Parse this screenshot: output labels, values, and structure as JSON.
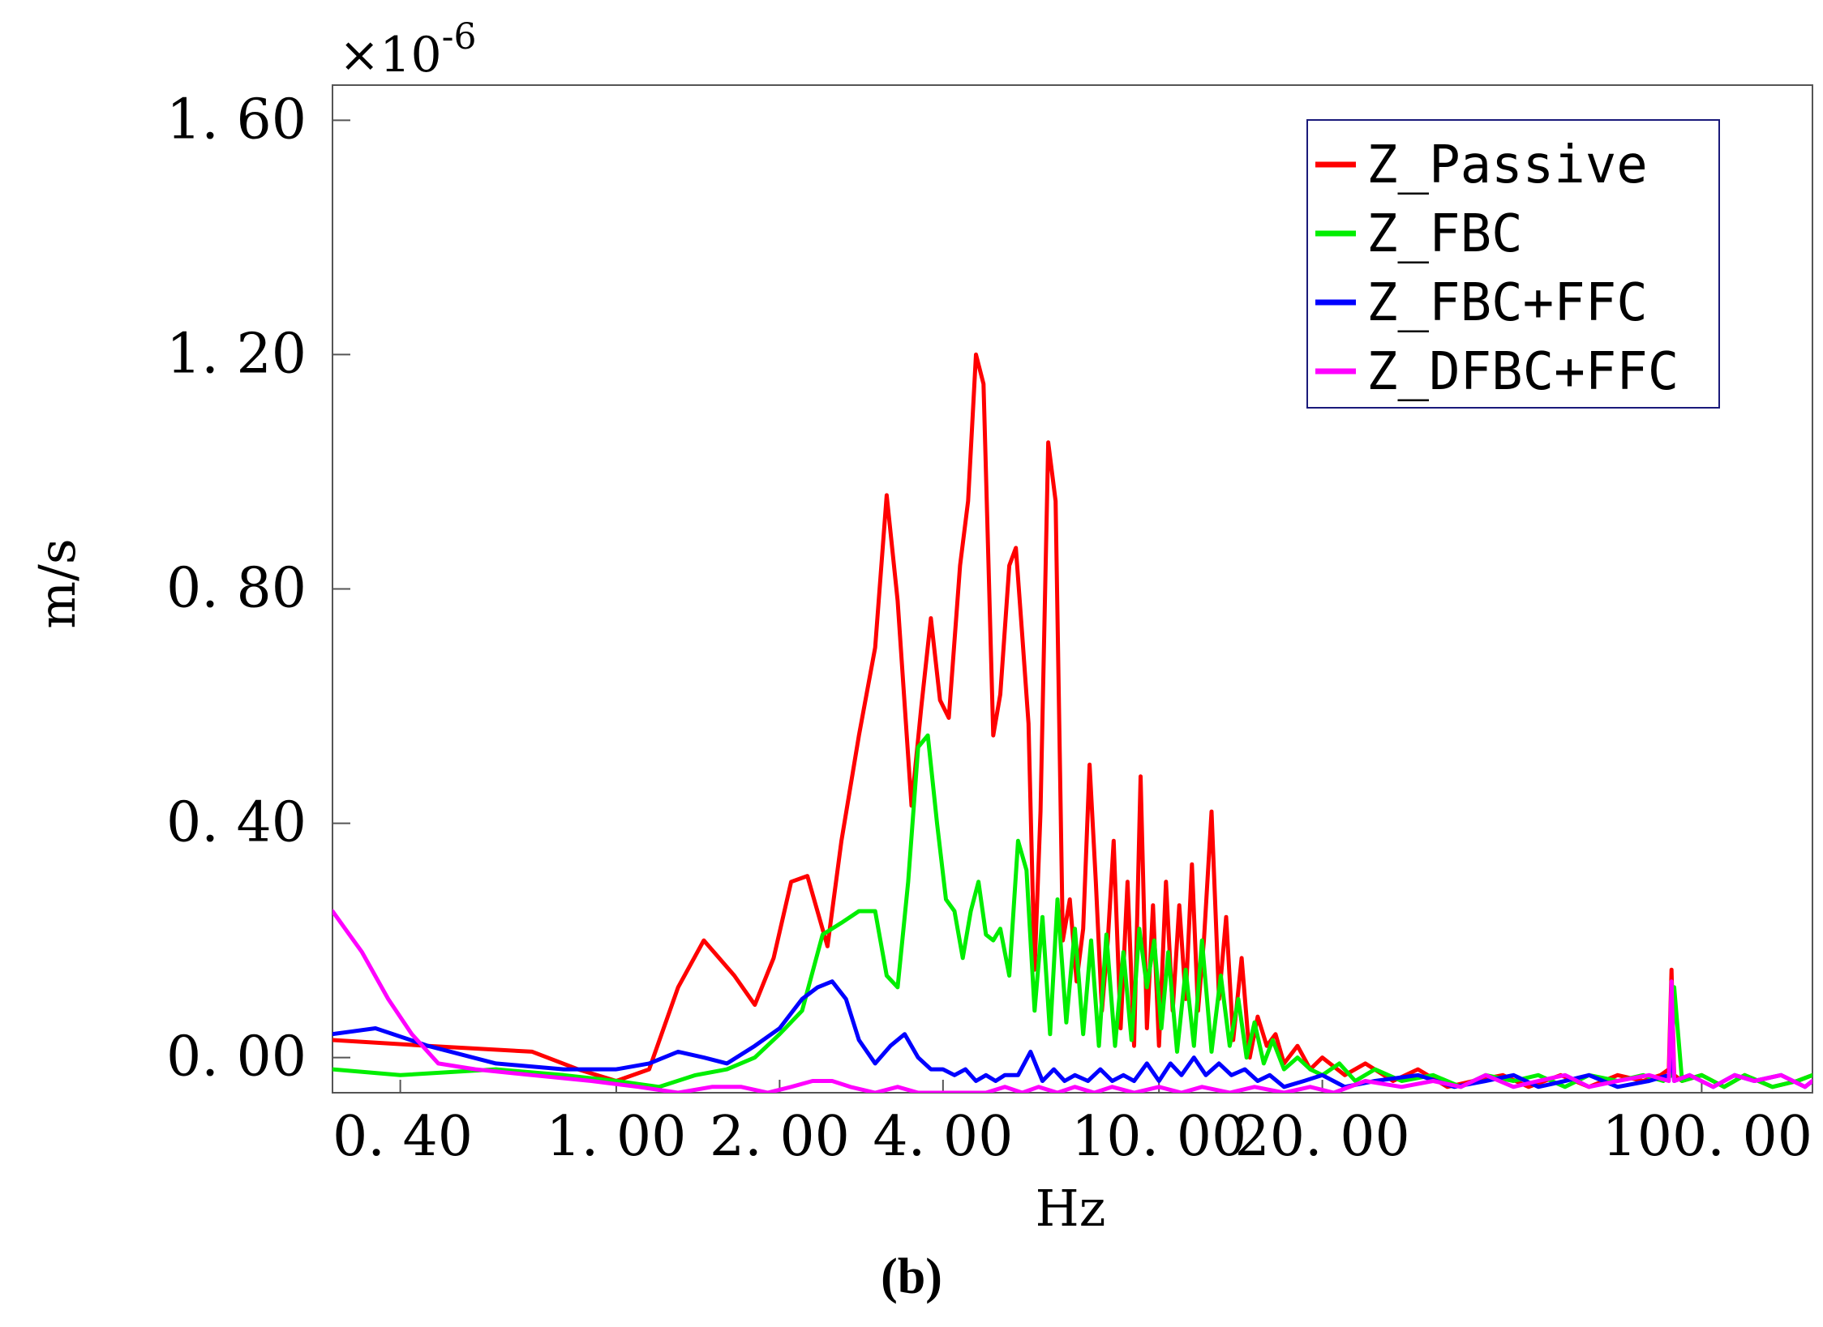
{
  "panel_label": "(b)",
  "chart_data": {
    "type": "line",
    "x_scale": "log",
    "xlabel": "Hz",
    "ylabel": "m/s",
    "y_multiplier_label": "×10",
    "y_multiplier_exponent": "-6",
    "xlim": [
      0.3,
      160
    ],
    "ylim": [
      -0.06,
      1.66
    ],
    "y_ticks": [
      {
        "value": 0.0,
        "label": "0. 00"
      },
      {
        "value": 0.4,
        "label": "0. 40"
      },
      {
        "value": 0.8,
        "label": "0. 80"
      },
      {
        "value": 1.2,
        "label": "1. 20"
      },
      {
        "value": 1.6,
        "label": "1. 60"
      }
    ],
    "x_ticks": [
      {
        "value": 0.4,
        "label": "0. 40"
      },
      {
        "value": 1.0,
        "label": "1. 00"
      },
      {
        "value": 2.0,
        "label": "2. 00"
      },
      {
        "value": 4.0,
        "label": "4. 00"
      },
      {
        "value": 10.0,
        "label": "10. 00"
      },
      {
        "value": 20.0,
        "label": "20. 00"
      },
      {
        "value": 100.0,
        "label": "100. 00"
      }
    ],
    "legend_position": "top-right",
    "series": [
      {
        "name": "Z_Passive",
        "color": "#ff0000",
        "x": [
          0.3,
          0.45,
          0.7,
          0.85,
          1.0,
          1.15,
          1.3,
          1.45,
          1.65,
          1.8,
          1.95,
          2.1,
          2.25,
          2.45,
          2.6,
          2.8,
          3.0,
          3.15,
          3.3,
          3.5,
          3.65,
          3.8,
          3.95,
          4.1,
          4.3,
          4.45,
          4.6,
          4.75,
          4.95,
          5.1,
          5.3,
          5.45,
          5.6,
          5.75,
          5.9,
          6.05,
          6.25,
          6.45,
          6.65,
          6.85,
          7.05,
          7.25,
          7.45,
          7.65,
          7.85,
          8.05,
          8.25,
          8.5,
          8.75,
          9.0,
          9.25,
          9.5,
          9.75,
          10.0,
          10.3,
          10.6,
          10.9,
          11.2,
          11.5,
          11.8,
          12.1,
          12.5,
          12.9,
          13.3,
          13.7,
          14.2,
          14.7,
          15.2,
          15.8,
          16.4,
          17.0,
          18.0,
          19.0,
          20.0,
          22.0,
          24.0,
          27.0,
          30.0,
          34.0,
          38.0,
          43.0,
          48.0,
          55.0,
          62.0,
          70.0,
          78.0,
          84.0,
          87.0,
          88.0,
          89.0,
          92.0,
          100.0,
          110.0,
          120.0,
          135.0,
          150.0,
          160.0
        ],
        "y": [
          0.03,
          0.02,
          0.01,
          -0.02,
          -0.04,
          -0.02,
          0.12,
          0.2,
          0.14,
          0.09,
          0.17,
          0.3,
          0.31,
          0.19,
          0.37,
          0.55,
          0.7,
          0.96,
          0.78,
          0.43,
          0.6,
          0.75,
          0.61,
          0.58,
          0.84,
          0.95,
          1.2,
          1.15,
          0.55,
          0.62,
          0.84,
          0.87,
          0.72,
          0.57,
          0.15,
          0.42,
          1.05,
          0.95,
          0.2,
          0.27,
          0.13,
          0.22,
          0.5,
          0.3,
          0.08,
          0.2,
          0.37,
          0.05,
          0.3,
          0.02,
          0.48,
          0.05,
          0.26,
          0.02,
          0.3,
          0.08,
          0.26,
          0.1,
          0.33,
          0.08,
          0.2,
          0.42,
          0.1,
          0.24,
          0.03,
          0.17,
          0.0,
          0.07,
          0.02,
          0.04,
          -0.01,
          0.02,
          -0.02,
          0.0,
          -0.03,
          -0.01,
          -0.04,
          -0.02,
          -0.05,
          -0.04,
          -0.03,
          -0.05,
          -0.03,
          -0.05,
          -0.03,
          -0.04,
          -0.03,
          -0.02,
          0.15,
          -0.03,
          -0.04,
          -0.03,
          -0.05,
          -0.03,
          -0.05,
          -0.04,
          -0.03
        ]
      },
      {
        "name": "Z_FBC",
        "color": "#00ee00",
        "x": [
          0.3,
          0.4,
          0.6,
          0.8,
          1.0,
          1.2,
          1.4,
          1.6,
          1.8,
          2.0,
          2.2,
          2.4,
          2.6,
          2.8,
          3.0,
          3.15,
          3.3,
          3.45,
          3.6,
          3.75,
          3.9,
          4.05,
          4.2,
          4.35,
          4.5,
          4.65,
          4.8,
          4.95,
          5.1,
          5.3,
          5.5,
          5.7,
          5.9,
          6.1,
          6.3,
          6.5,
          6.75,
          7.0,
          7.25,
          7.5,
          7.75,
          8.0,
          8.3,
          8.6,
          8.9,
          9.2,
          9.5,
          9.8,
          10.1,
          10.4,
          10.8,
          11.2,
          11.6,
          12.0,
          12.5,
          13.0,
          13.5,
          14.0,
          14.5,
          15.0,
          15.6,
          16.2,
          17.0,
          18.0,
          19.0,
          20.0,
          21.5,
          23.0,
          25.0,
          28.0,
          32.0,
          36.0,
          40.0,
          45.0,
          50.0,
          56.0,
          62.0,
          70.0,
          78.0,
          85.0,
          88.0,
          89.0,
          92.0,
          100.0,
          110.0,
          120.0,
          135.0,
          150.0,
          160.0
        ],
        "y": [
          -0.02,
          -0.03,
          -0.02,
          -0.03,
          -0.04,
          -0.05,
          -0.03,
          -0.02,
          0.0,
          0.04,
          0.08,
          0.21,
          0.23,
          0.25,
          0.25,
          0.14,
          0.12,
          0.3,
          0.53,
          0.55,
          0.4,
          0.27,
          0.25,
          0.17,
          0.25,
          0.3,
          0.21,
          0.2,
          0.22,
          0.14,
          0.37,
          0.32,
          0.08,
          0.24,
          0.04,
          0.27,
          0.06,
          0.22,
          0.04,
          0.2,
          0.02,
          0.21,
          0.02,
          0.18,
          0.03,
          0.22,
          0.12,
          0.2,
          0.05,
          0.18,
          0.01,
          0.15,
          0.02,
          0.2,
          0.01,
          0.14,
          0.02,
          0.1,
          0.0,
          0.06,
          -0.01,
          0.03,
          -0.02,
          0.0,
          -0.02,
          -0.03,
          -0.01,
          -0.04,
          -0.02,
          -0.04,
          -0.03,
          -0.05,
          -0.03,
          -0.04,
          -0.03,
          -0.05,
          -0.03,
          -0.04,
          -0.03,
          -0.04,
          -0.03,
          0.12,
          -0.04,
          -0.03,
          -0.05,
          -0.03,
          -0.05,
          -0.04,
          -0.03
        ]
      },
      {
        "name": "Z_FBC+FFC",
        "color": "#0000ff",
        "x": [
          0.3,
          0.36,
          0.45,
          0.6,
          0.8,
          1.0,
          1.15,
          1.3,
          1.45,
          1.6,
          1.8,
          2.0,
          2.2,
          2.35,
          2.5,
          2.65,
          2.8,
          3.0,
          3.2,
          3.4,
          3.6,
          3.8,
          4.0,
          4.2,
          4.4,
          4.6,
          4.8,
          5.0,
          5.2,
          5.5,
          5.8,
          6.1,
          6.4,
          6.7,
          7.0,
          7.4,
          7.8,
          8.2,
          8.6,
          9.0,
          9.5,
          10.0,
          10.5,
          11.0,
          11.6,
          12.2,
          12.9,
          13.6,
          14.4,
          15.2,
          16.0,
          17.0,
          18.5,
          20.0,
          22.0,
          25.0,
          30.0,
          35.0,
          40.0,
          45.0,
          50.0,
          56.0,
          62.0,
          70.0,
          80.0,
          87.0,
          88.0,
          89.0,
          95.0,
          105.0,
          115.0,
          125.0,
          140.0,
          155.0,
          160.0
        ],
        "y": [
          0.04,
          0.05,
          0.02,
          -0.01,
          -0.02,
          -0.02,
          -0.01,
          0.01,
          0.0,
          -0.01,
          0.02,
          0.05,
          0.1,
          0.12,
          0.13,
          0.1,
          0.03,
          -0.01,
          0.02,
          0.04,
          0.0,
          -0.02,
          -0.02,
          -0.03,
          -0.02,
          -0.04,
          -0.03,
          -0.04,
          -0.03,
          -0.03,
          0.01,
          -0.04,
          -0.02,
          -0.04,
          -0.03,
          -0.04,
          -0.02,
          -0.04,
          -0.03,
          -0.04,
          -0.01,
          -0.04,
          -0.01,
          -0.03,
          0.0,
          -0.03,
          -0.01,
          -0.03,
          -0.02,
          -0.04,
          -0.03,
          -0.05,
          -0.04,
          -0.03,
          -0.05,
          -0.04,
          -0.03,
          -0.05,
          -0.04,
          -0.03,
          -0.05,
          -0.04,
          -0.03,
          -0.05,
          -0.04,
          -0.03,
          0.01,
          -0.04,
          -0.03,
          -0.05,
          -0.03,
          -0.04,
          -0.03,
          -0.05,
          -0.04
        ]
      },
      {
        "name": "Z_DFBC+FFC",
        "color": "#ff00ff",
        "x": [
          0.3,
          0.34,
          0.38,
          0.42,
          0.47,
          0.55,
          0.7,
          0.9,
          1.1,
          1.3,
          1.5,
          1.7,
          1.9,
          2.1,
          2.3,
          2.5,
          2.7,
          3.0,
          3.3,
          3.6,
          3.9,
          4.2,
          4.5,
          4.8,
          5.2,
          5.6,
          6.0,
          6.5,
          7.0,
          7.6,
          8.2,
          9.0,
          10.0,
          11.0,
          12.0,
          13.5,
          15.0,
          17.0,
          19.0,
          21.0,
          24.0,
          28.0,
          32.0,
          36.0,
          40.0,
          45.0,
          50.0,
          56.0,
          62.0,
          70.0,
          80.0,
          87.0,
          88.0,
          89.0,
          95.0,
          105.0,
          115.0,
          125.0,
          140.0,
          155.0,
          160.0
        ],
        "y": [
          0.25,
          0.18,
          0.1,
          0.04,
          -0.01,
          -0.02,
          -0.03,
          -0.04,
          -0.05,
          -0.06,
          -0.05,
          -0.05,
          -0.06,
          -0.05,
          -0.04,
          -0.04,
          -0.05,
          -0.06,
          -0.05,
          -0.06,
          -0.06,
          -0.06,
          -0.06,
          -0.06,
          -0.05,
          -0.06,
          -0.05,
          -0.06,
          -0.05,
          -0.06,
          -0.05,
          -0.06,
          -0.05,
          -0.06,
          -0.05,
          -0.06,
          -0.05,
          -0.06,
          -0.05,
          -0.06,
          -0.04,
          -0.05,
          -0.04,
          -0.05,
          -0.03,
          -0.05,
          -0.04,
          -0.03,
          -0.05,
          -0.04,
          -0.03,
          -0.04,
          0.13,
          -0.04,
          -0.03,
          -0.05,
          -0.03,
          -0.04,
          -0.03,
          -0.05,
          -0.04
        ]
      }
    ]
  }
}
